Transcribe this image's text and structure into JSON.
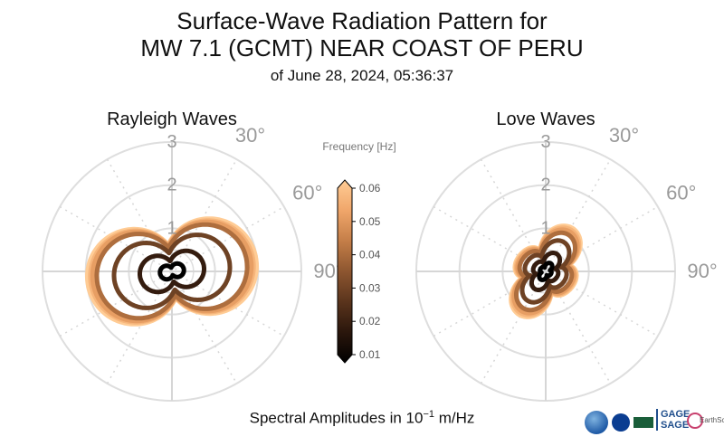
{
  "header": {
    "title_line1": "Surface-Wave Radiation Pattern for",
    "title_line2": "MW 7.1 (GCMT) NEAR COAST OF PERU",
    "subtitle": "of June 28, 2024, 05:36:37"
  },
  "footer": {
    "label_prefix": "Spectral Amplitudes in ",
    "label_base": "10",
    "label_exp": "−1",
    "label_unit": " m/Hz"
  },
  "colorbar": {
    "title": "Frequency [Hz]",
    "ticks": [
      "0.06",
      "0.05",
      "0.04",
      "0.03",
      "0.02",
      "0.01"
    ],
    "colors": [
      "#000000",
      "#2a160c",
      "#5a341c",
      "#8d5630",
      "#c47e48",
      "#f0a66a",
      "#ffcc95"
    ]
  },
  "logos": {
    "gage_line1": "GAGE",
    "gage_line2": "SAGE",
    "earthscope": "EarthScope"
  },
  "chart_data": [
    {
      "type": "polar",
      "title": "Rayleigh Waves",
      "radial_ticks": [
        "1",
        "2",
        "3"
      ],
      "radial_max": 3,
      "angle_ticks": [
        "30°",
        "60°",
        "90°"
      ],
      "zero_direction": "N",
      "direction": "clockwise",
      "grid": true,
      "series": [
        {
          "frequency": 0.01,
          "max_amplitude": 0.28,
          "lobe_axis_deg": 90,
          "tilt_deg": -12
        },
        {
          "frequency": 0.02,
          "max_amplitude": 0.75,
          "lobe_axis_deg": 90,
          "tilt_deg": -10
        },
        {
          "frequency": 0.03,
          "max_amplitude": 1.35,
          "lobe_axis_deg": 90,
          "tilt_deg": -9
        },
        {
          "frequency": 0.04,
          "max_amplitude": 1.75,
          "lobe_axis_deg": 90,
          "tilt_deg": -8
        },
        {
          "frequency": 0.05,
          "max_amplitude": 1.85,
          "lobe_axis_deg": 90,
          "tilt_deg": -8
        },
        {
          "frequency": 0.055,
          "max_amplitude": 1.9,
          "lobe_axis_deg": 90,
          "tilt_deg": -8
        },
        {
          "frequency": 0.06,
          "max_amplitude": 1.97,
          "lobe_axis_deg": 90,
          "tilt_deg": -8
        }
      ]
    },
    {
      "type": "polar",
      "title": "Love Waves",
      "radial_ticks": [
        "1",
        "2",
        "3"
      ],
      "radial_max": 3,
      "angle_ticks": [
        "30°",
        "60°",
        "90°"
      ],
      "zero_direction": "N",
      "direction": "clockwise",
      "grid": true,
      "series": [
        {
          "frequency": 0.01,
          "max_amplitude": 0.22,
          "lobe_axis_deg": 30,
          "tilt_deg": 0
        },
        {
          "frequency": 0.02,
          "max_amplitude": 0.48,
          "lobe_axis_deg": 30,
          "tilt_deg": 0
        },
        {
          "frequency": 0.03,
          "max_amplitude": 0.8,
          "lobe_axis_deg": 30,
          "tilt_deg": 0
        },
        {
          "frequency": 0.04,
          "max_amplitude": 1.0,
          "lobe_axis_deg": 30,
          "tilt_deg": 0
        },
        {
          "frequency": 0.05,
          "max_amplitude": 1.08,
          "lobe_axis_deg": 30,
          "tilt_deg": 0
        },
        {
          "frequency": 0.055,
          "max_amplitude": 1.13,
          "lobe_axis_deg": 30,
          "tilt_deg": 0
        },
        {
          "frequency": 0.06,
          "max_amplitude": 1.18,
          "lobe_axis_deg": 30,
          "tilt_deg": 0
        }
      ]
    }
  ]
}
